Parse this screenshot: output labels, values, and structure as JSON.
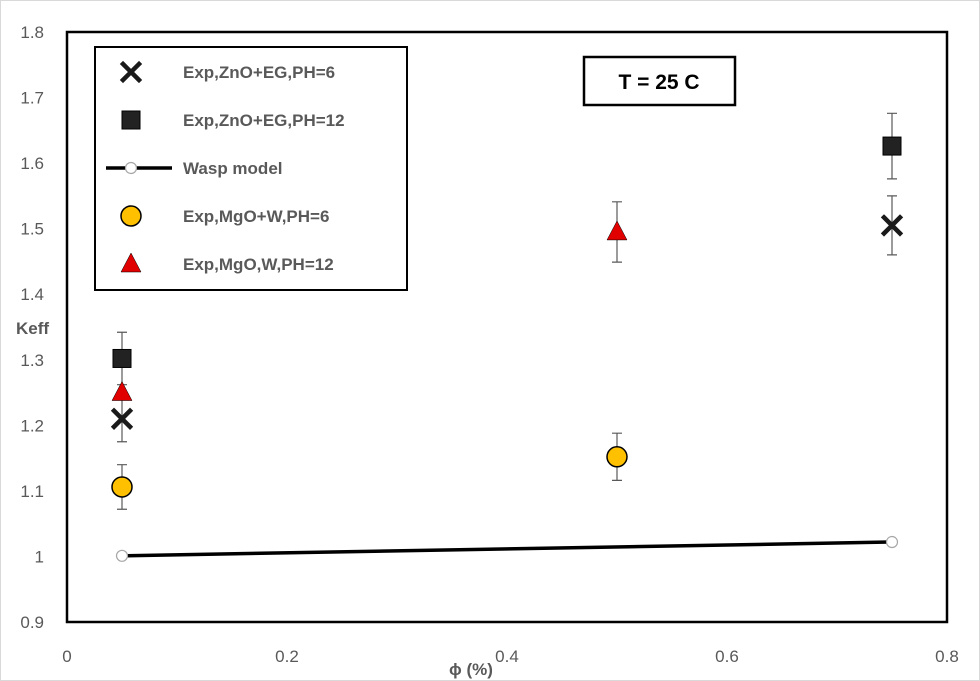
{
  "chart_data": {
    "type": "scatter",
    "xlabel": "ϕ (%)",
    "ylabel": "Keff",
    "xlim": [
      0,
      0.8
    ],
    "ylim": [
      0.9,
      1.8
    ],
    "x_ticks": [
      0,
      0.2,
      0.4,
      0.6,
      0.8
    ],
    "x_tick_labels": [
      "0",
      "0.2",
      "0.4",
      "0.6",
      "0.8"
    ],
    "y_ticks": [
      0.9,
      1.0,
      1.1,
      1.2,
      1.3,
      1.4,
      1.5,
      1.6,
      1.7,
      1.8
    ],
    "y_tick_labels": [
      "0.9",
      "1",
      "1.1",
      "1.2",
      "1.3",
      "1.4",
      "1.5",
      "1.6",
      "1.7",
      "1.8"
    ],
    "grid": false,
    "legend_position": "top-left",
    "annotation": "T = 25 C",
    "series": [
      {
        "name": "Exp,ZnO+EG,PH=6",
        "marker": "x",
        "color": "#1a1a1a",
        "x": [
          0.05,
          0.75
        ],
        "y": [
          1.21,
          1.505
        ],
        "error": [
          0.035,
          0.045
        ]
      },
      {
        "name": "Exp,ZnO+EG,PH=12",
        "marker": "square",
        "color": "#222222",
        "x": [
          0.05,
          0.75
        ],
        "y": [
          1.302,
          1.626
        ],
        "error": [
          0.04,
          0.05
        ]
      },
      {
        "name": "Wasp model",
        "marker": "line",
        "color": "#000000",
        "x": [
          0.05,
          0.75
        ],
        "y": [
          1.001,
          1.022
        ],
        "error": []
      },
      {
        "name": "Exp,MgO+W,PH=6",
        "marker": "circle",
        "color": "#FFC000",
        "x": [
          0.05,
          0.5
        ],
        "y": [
          1.106,
          1.152
        ],
        "error": [
          0.034,
          0.036
        ]
      },
      {
        "name": "Exp,MgO,W,PH=12",
        "marker": "triangle",
        "color": "#E00000",
        "x": [
          0.05,
          0.5
        ],
        "y": [
          1.25,
          1.495
        ],
        "error": [
          0.0,
          0.046
        ]
      }
    ]
  }
}
